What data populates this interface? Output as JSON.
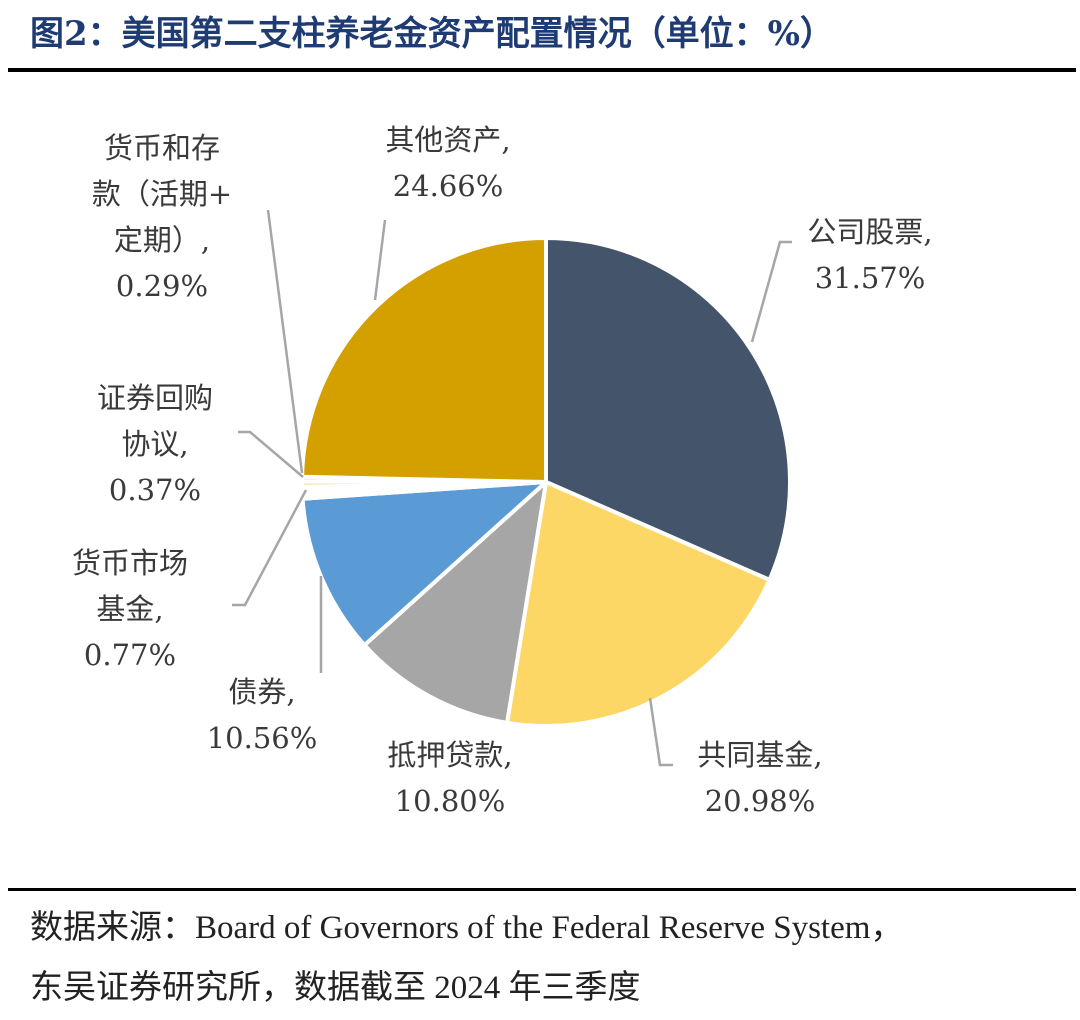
{
  "title": "图2：美国第二支柱养老金资产配置情况（单位：%）",
  "source_line1": "数据来源：Board of Governors of the Federal Reserve System，",
  "source_line2": "东吴证券研究所，数据截至 2024 年三季度",
  "chart_data": {
    "type": "pie",
    "title": "图2：美国第二支柱养老金资产配置情况（单位：%）",
    "unit": "%",
    "slices": [
      {
        "name": "公司股票",
        "value": 31.57,
        "label_lines": [
          "公司股票,",
          "31.57%"
        ],
        "color": "#44546a"
      },
      {
        "name": "共同基金",
        "value": 20.98,
        "label_lines": [
          "共同基金,",
          "20.98%"
        ],
        "color": "#fdd766"
      },
      {
        "name": "抵押贷款",
        "value": 10.8,
        "label_lines": [
          "抵押贷款,",
          "10.80%"
        ],
        "color": "#a6a6a6"
      },
      {
        "name": "债券",
        "value": 10.56,
        "label_lines": [
          "债券,",
          "10.56%"
        ],
        "color": "#5b9bd5"
      },
      {
        "name": "货币市场基金",
        "value": 0.77,
        "label_lines": [
          "货币市场",
          "基金,",
          "0.77%"
        ],
        "color": "#ffffff"
      },
      {
        "name": "证券回购协议",
        "value": 0.37,
        "label_lines": [
          "证券回购",
          "协议,",
          "0.37%"
        ],
        "color": "#f8e6a8"
      },
      {
        "name": "货币和存款（活期+定期）",
        "value": 0.29,
        "label_lines": [
          "货币和存",
          "款（活期+",
          "定期）,",
          "0.29%"
        ],
        "color": "#d9d9d9"
      },
      {
        "name": "其他资产",
        "value": 24.66,
        "label_lines": [
          "其他资产,",
          "24.66%"
        ],
        "color": "#d4a000"
      }
    ]
  }
}
